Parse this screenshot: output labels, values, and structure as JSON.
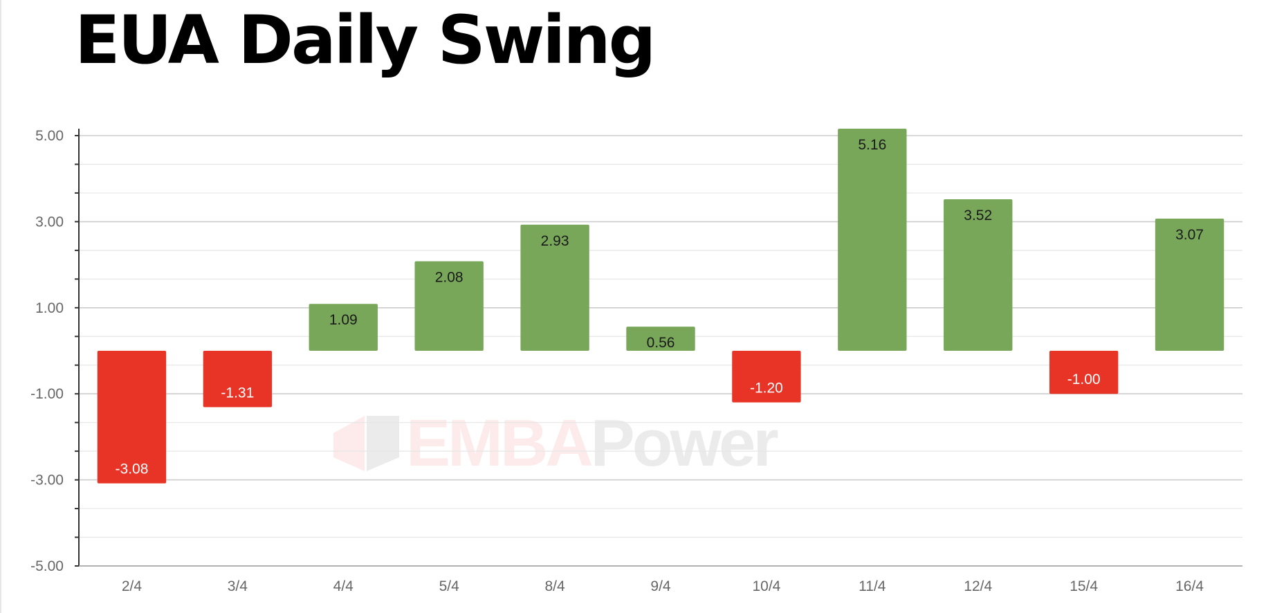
{
  "chart_data": {
    "type": "bar",
    "title": "EUA Daily Swing",
    "categories": [
      "2/4",
      "3/4",
      "4/4",
      "5/4",
      "8/4",
      "9/4",
      "10/4",
      "11/4",
      "12/4",
      "15/4",
      "16/4"
    ],
    "values": [
      -3.08,
      -1.31,
      1.09,
      2.08,
      2.93,
      0.56,
      -1.2,
      5.16,
      3.52,
      -1.0,
      3.07
    ],
    "value_labels": [
      "-3.08",
      "-1.31",
      "1.09",
      "2.08",
      "2.93",
      "0.56",
      "-1.20",
      "5.16",
      "3.52",
      "-1.00",
      "3.07"
    ],
    "ylim": [
      -5,
      5
    ],
    "y_tick_labels": [
      "5.00",
      "3.00",
      "1.00",
      "-1.00",
      "-3.00",
      "-5.00"
    ],
    "xlabel": "",
    "ylabel": "",
    "grid": true,
    "colors": {
      "positive": "#78a75a",
      "negative": "#e73427",
      "positive_label": "#1a1a1a",
      "negative_label": "#ffffff",
      "grid_major": "#cccccc",
      "grid_minor": "#e6e6e6",
      "axis": "#333333"
    }
  },
  "watermark": {
    "part1": "EMBA",
    "part2": "Power",
    "icon": "emba-logo-icon"
  }
}
